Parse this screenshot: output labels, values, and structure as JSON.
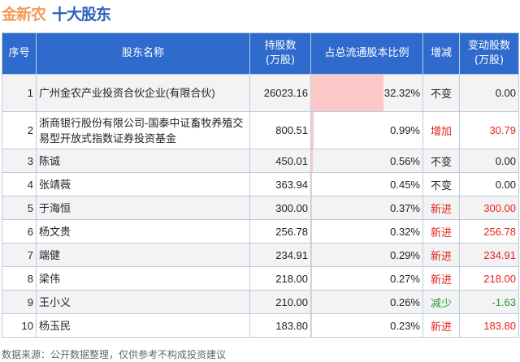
{
  "title": {
    "company": "金新农",
    "section": "十大股东"
  },
  "headers": [
    "序号",
    "股东名称",
    "持股数\n(万股)",
    "占总流通股本比例",
    "增减",
    "变动股数\n(万股)"
  ],
  "colors": {
    "header_bg": "#2e6bcd",
    "increase": "#e8231b",
    "decrease": "#2a9a3a",
    "bar": "#fdc8c8",
    "company_title": "#f29a5a",
    "section_title": "#2a62b8"
  },
  "rows": [
    {
      "rank": "1",
      "name": "广州金农产业投资合伙企业(有限合伙)",
      "shares": "26023.16",
      "ratio": "32.32%",
      "ratio_value": 32.32,
      "change": "不变",
      "change_type": "same",
      "delta": "0.00"
    },
    {
      "rank": "2",
      "name": "浙商银行股份有限公司-国泰中证畜牧养殖交易型开放式指数证券投资基金",
      "shares": "800.51",
      "ratio": "0.99%",
      "ratio_value": 0.99,
      "change": "增加",
      "change_type": "up",
      "delta": "30.79"
    },
    {
      "rank": "3",
      "name": "陈诚",
      "shares": "450.01",
      "ratio": "0.56%",
      "ratio_value": 0.56,
      "change": "不变",
      "change_type": "same",
      "delta": "0.00"
    },
    {
      "rank": "4",
      "name": "张靖薇",
      "shares": "363.94",
      "ratio": "0.45%",
      "ratio_value": 0.45,
      "change": "不变",
      "change_type": "same",
      "delta": "0.00"
    },
    {
      "rank": "5",
      "name": "于海恒",
      "shares": "300.00",
      "ratio": "0.37%",
      "ratio_value": 0.37,
      "change": "新进",
      "change_type": "up",
      "delta": "300.00"
    },
    {
      "rank": "6",
      "name": "杨文贵",
      "shares": "256.78",
      "ratio": "0.32%",
      "ratio_value": 0.32,
      "change": "新进",
      "change_type": "up",
      "delta": "256.78"
    },
    {
      "rank": "7",
      "name": "端健",
      "shares": "234.91",
      "ratio": "0.29%",
      "ratio_value": 0.29,
      "change": "新进",
      "change_type": "up",
      "delta": "234.91"
    },
    {
      "rank": "8",
      "name": "梁伟",
      "shares": "218.00",
      "ratio": "0.27%",
      "ratio_value": 0.27,
      "change": "新进",
      "change_type": "up",
      "delta": "218.00"
    },
    {
      "rank": "9",
      "name": "王小义",
      "shares": "210.00",
      "ratio": "0.26%",
      "ratio_value": 0.26,
      "change": "减少",
      "change_type": "down",
      "delta": "-1.63"
    },
    {
      "rank": "10",
      "name": "杨玉民",
      "shares": "183.80",
      "ratio": "0.23%",
      "ratio_value": 0.23,
      "change": "新进",
      "change_type": "up",
      "delta": "183.80"
    }
  ],
  "footer": "数据来源：公开数据整理，仅供参考不构成投资建议"
}
